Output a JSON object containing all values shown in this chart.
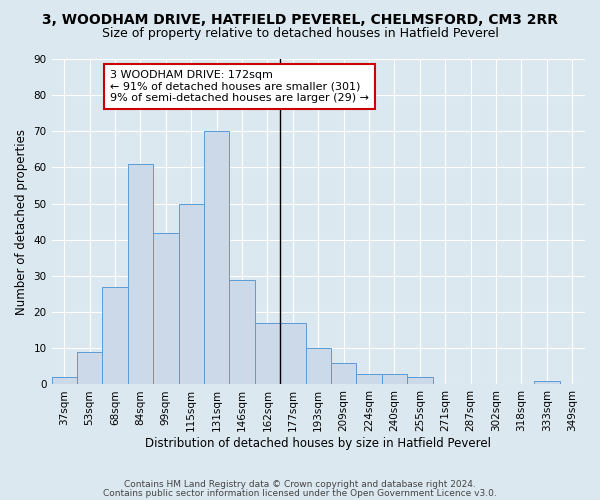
{
  "title": "3, WOODHAM DRIVE, HATFIELD PEVEREL, CHELMSFORD, CM3 2RR",
  "subtitle": "Size of property relative to detached houses in Hatfield Peverel",
  "xlabel": "Distribution of detached houses by size in Hatfield Peverel",
  "ylabel": "Number of detached properties",
  "categories": [
    "37sqm",
    "53sqm",
    "68sqm",
    "84sqm",
    "99sqm",
    "115sqm",
    "131sqm",
    "146sqm",
    "162sqm",
    "177sqm",
    "193sqm",
    "209sqm",
    "224sqm",
    "240sqm",
    "255sqm",
    "271sqm",
    "287sqm",
    "302sqm",
    "318sqm",
    "333sqm",
    "349sqm"
  ],
  "values": [
    2,
    9,
    27,
    61,
    42,
    50,
    70,
    29,
    17,
    17,
    10,
    6,
    3,
    3,
    2,
    0,
    0,
    0,
    0,
    1,
    0
  ],
  "bar_color": "#ccd9e8",
  "bar_edge_color": "#5b9bd5",
  "annotation_line1": "3 WOODHAM DRIVE: 172sqm",
  "annotation_line2": "← 91% of detached houses are smaller (301)",
  "annotation_line3": "9% of semi-detached houses are larger (29) →",
  "annotation_box_color": "#ffffff",
  "annotation_box_edge": "#cc0000",
  "ylim": [
    0,
    90
  ],
  "yticks": [
    0,
    10,
    20,
    30,
    40,
    50,
    60,
    70,
    80,
    90
  ],
  "fig_bg_color": "#dce8f0",
  "plot_bg_color": "#dce8f0",
  "footer1": "Contains HM Land Registry data © Crown copyright and database right 2024.",
  "footer2": "Contains public sector information licensed under the Open Government Licence v3.0.",
  "title_fontsize": 10,
  "subtitle_fontsize": 9,
  "axis_label_fontsize": 8.5,
  "tick_fontsize": 7.5,
  "annotation_fontsize": 8,
  "footer_fontsize": 6.5
}
